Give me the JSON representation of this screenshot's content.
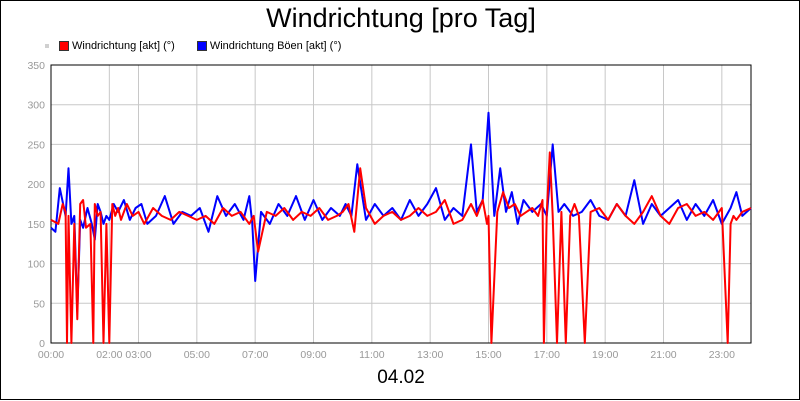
{
  "chart_data": {
    "type": "line",
    "title": "Windrichtung [pro Tag]",
    "xlabel": "04.02",
    "ylabel": "",
    "ylim": [
      0,
      350
    ],
    "yticks": [
      0,
      50,
      100,
      150,
      200,
      250,
      300,
      350
    ],
    "xlim": [
      0,
      24
    ],
    "xticks": [
      {
        "pos": 0,
        "label": "00:00"
      },
      {
        "pos": 2,
        "label": "02:00"
      },
      {
        "pos": 3,
        "label": "03:00"
      },
      {
        "pos": 5,
        "label": "05:00"
      },
      {
        "pos": 7,
        "label": "07:00"
      },
      {
        "pos": 9,
        "label": "09:00"
      },
      {
        "pos": 11,
        "label": "11:00"
      },
      {
        "pos": 13,
        "label": "13:00"
      },
      {
        "pos": 15,
        "label": "15:00"
      },
      {
        "pos": 17,
        "label": "17:00"
      },
      {
        "pos": 19,
        "label": "19:00"
      },
      {
        "pos": 21,
        "label": "21:00"
      },
      {
        "pos": 23,
        "label": "23:00"
      }
    ],
    "grid": true,
    "legend_position": "top-left",
    "series": [
      {
        "name": "Windrichtung [akt] (°)",
        "color": "#ff0000",
        "x": [
          0,
          0.25,
          0.4,
          0.5,
          0.55,
          0.6,
          0.7,
          0.8,
          0.9,
          1.0,
          1.1,
          1.2,
          1.35,
          1.45,
          1.5,
          1.6,
          1.7,
          1.8,
          1.9,
          2.0,
          2.1,
          2.2,
          2.3,
          2.4,
          2.6,
          2.8,
          3.0,
          3.2,
          3.5,
          3.8,
          4.1,
          4.4,
          4.7,
          5.0,
          5.3,
          5.6,
          5.9,
          6.2,
          6.5,
          6.8,
          6.95,
          7.1,
          7.4,
          7.7,
          8.0,
          8.3,
          8.6,
          8.9,
          9.2,
          9.5,
          9.8,
          10.0,
          10.2,
          10.4,
          10.6,
          10.8,
          11.1,
          11.4,
          11.7,
          12.0,
          12.3,
          12.6,
          12.9,
          13.2,
          13.5,
          13.8,
          14.1,
          14.4,
          14.6,
          14.8,
          14.95,
          15.0,
          15.1,
          15.3,
          15.5,
          15.7,
          15.9,
          16.1,
          16.3,
          16.5,
          16.7,
          16.85,
          16.9,
          17.0,
          17.1,
          17.2,
          17.35,
          17.5,
          17.65,
          17.8,
          17.95,
          18.1,
          18.3,
          18.5,
          18.8,
          19.1,
          19.4,
          19.7,
          20.0,
          20.3,
          20.6,
          20.9,
          21.2,
          21.5,
          21.8,
          22.1,
          22.4,
          22.7,
          23.0,
          23.2,
          23.3,
          23.4,
          23.5,
          23.7,
          24.0
        ],
        "values": [
          155,
          150,
          175,
          165,
          0,
          160,
          0,
          150,
          30,
          175,
          180,
          145,
          150,
          0,
          175,
          160,
          165,
          0,
          150,
          0,
          175,
          160,
          170,
          155,
          175,
          160,
          165,
          150,
          170,
          160,
          155,
          165,
          160,
          155,
          160,
          150,
          170,
          160,
          165,
          150,
          160,
          115,
          165,
          160,
          170,
          155,
          165,
          160,
          170,
          155,
          160,
          165,
          175,
          140,
          220,
          170,
          150,
          160,
          165,
          155,
          160,
          170,
          160,
          165,
          180,
          150,
          155,
          175,
          160,
          180,
          150,
          160,
          0,
          165,
          190,
          170,
          175,
          160,
          165,
          170,
          160,
          180,
          0,
          165,
          240,
          160,
          0,
          165,
          0,
          160,
          175,
          160,
          0,
          165,
          170,
          155,
          175,
          160,
          150,
          165,
          185,
          160,
          150,
          170,
          175,
          160,
          165,
          155,
          170,
          0,
          150,
          160,
          155,
          165,
          170
        ]
      },
      {
        "name": "Windrichtung Böen [akt] (°)",
        "color": "#0000ff",
        "x": [
          0,
          0.15,
          0.3,
          0.5,
          0.6,
          0.7,
          0.8,
          0.9,
          1.0,
          1.1,
          1.25,
          1.4,
          1.5,
          1.6,
          1.7,
          1.8,
          1.9,
          2.0,
          2.15,
          2.3,
          2.5,
          2.7,
          2.9,
          3.1,
          3.3,
          3.6,
          3.9,
          4.2,
          4.5,
          4.8,
          5.1,
          5.4,
          5.7,
          6.0,
          6.3,
          6.6,
          6.8,
          6.9,
          7.0,
          7.2,
          7.5,
          7.8,
          8.1,
          8.4,
          8.7,
          9.0,
          9.3,
          9.6,
          9.9,
          10.1,
          10.3,
          10.5,
          10.8,
          11.1,
          11.4,
          11.7,
          12.0,
          12.3,
          12.6,
          12.9,
          13.2,
          13.5,
          13.8,
          14.1,
          14.4,
          14.6,
          14.8,
          15.0,
          15.2,
          15.4,
          15.6,
          15.8,
          16.0,
          16.2,
          16.5,
          16.8,
          17.0,
          17.2,
          17.4,
          17.6,
          17.9,
          18.2,
          18.5,
          18.8,
          19.1,
          19.4,
          19.7,
          20.0,
          20.3,
          20.6,
          20.9,
          21.2,
          21.5,
          21.8,
          22.1,
          22.4,
          22.7,
          23.0,
          23.3,
          23.5,
          23.7,
          24.0
        ],
        "values": [
          145,
          140,
          195,
          160,
          220,
          150,
          160,
          40,
          155,
          145,
          170,
          150,
          130,
          175,
          165,
          150,
          160,
          155,
          175,
          165,
          180,
          155,
          170,
          175,
          150,
          160,
          185,
          150,
          165,
          160,
          170,
          140,
          185,
          160,
          175,
          155,
          185,
          150,
          78,
          165,
          150,
          175,
          160,
          185,
          155,
          180,
          155,
          170,
          160,
          175,
          160,
          225,
          155,
          175,
          160,
          170,
          155,
          180,
          160,
          175,
          195,
          155,
          170,
          160,
          250,
          165,
          180,
          290,
          160,
          220,
          165,
          190,
          150,
          180,
          165,
          175,
          160,
          250,
          165,
          175,
          160,
          165,
          180,
          160,
          155,
          175,
          160,
          205,
          150,
          175,
          160,
          170,
          180,
          155,
          175,
          160,
          180,
          150,
          170,
          190,
          160,
          170
        ]
      }
    ]
  }
}
